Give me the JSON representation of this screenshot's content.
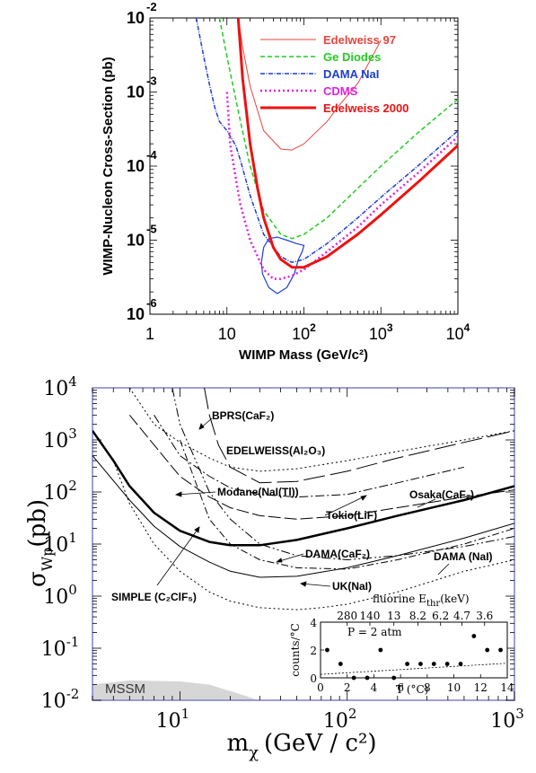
{
  "chart_data": [
    {
      "type": "line",
      "title": "",
      "xlabel": "WIMP Mass (GeV/c²)",
      "ylabel": "WIMP-Nucleon Cross-Section (pb)",
      "xscale": "log",
      "yscale": "log",
      "xlim": [
        1,
        10000
      ],
      "ylim": [
        1e-06,
        0.01
      ],
      "x_ticks": [
        {
          "v": 1,
          "base": "1",
          "exp": ""
        },
        {
          "v": 10,
          "base": "10",
          "exp": ""
        },
        {
          "v": 100,
          "base": "10",
          "exp": "2"
        },
        {
          "v": 1000,
          "base": "10",
          "exp": "3"
        },
        {
          "v": 10000,
          "base": "10",
          "exp": "4"
        }
      ],
      "y_ticks": [
        {
          "v": 0.01,
          "base": "10",
          "exp": "-2"
        },
        {
          "v": 0.001,
          "base": "10",
          "exp": "-3"
        },
        {
          "v": 0.0001,
          "base": "10",
          "exp": "-4"
        },
        {
          "v": 1e-05,
          "base": "10",
          "exp": "-5"
        },
        {
          "v": 1e-06,
          "base": "10",
          "exp": "-6"
        }
      ],
      "legend_position": "top-right",
      "series": [
        {
          "name": "Edelweiss 97",
          "color": "#e8453c",
          "dash": "",
          "width": 1,
          "x": [
            14,
            16,
            20,
            30,
            50,
            70,
            100,
            200,
            300,
            500,
            1000
          ],
          "y": [
            0.01,
            0.004,
            0.0012,
            0.0003,
            0.00017,
            0.000165,
            0.0002,
            0.0004,
            0.0007,
            0.0013,
            0.005
          ]
        },
        {
          "name": "Ge Diodes",
          "color": "#22cc22",
          "dash": "5,3",
          "width": 1.5,
          "x": [
            8,
            10,
            15,
            20,
            30,
            50,
            70,
            100,
            200,
            500,
            1000,
            3000,
            10000
          ],
          "y": [
            0.01,
            0.003,
            0.0004,
            0.0001,
            2.5e-05,
            1.2e-05,
            1.05e-05,
            1.2e-05,
            2e-05,
            5e-05,
            0.0001,
            0.00028,
            0.0008
          ]
        },
        {
          "name": "DAMA NaI",
          "color": "#1f3fd0",
          "dash": "5,1.5,1,1.5",
          "width": 1.5,
          "x": [
            4,
            5,
            6,
            7,
            8,
            10,
            13,
            15,
            20,
            30,
            50,
            70,
            100,
            200,
            500,
            1000,
            3000,
            10000
          ],
          "y": [
            0.01,
            0.003,
            0.0012,
            0.0006,
            0.0004,
            0.0003,
            0.00019,
            0.00012,
            4e-05,
            1.2e-05,
            6e-06,
            5e-06,
            5.5e-06,
            9e-06,
            2e-05,
            3.8e-05,
            0.0001,
            0.0003
          ]
        },
        {
          "name": "CDMS",
          "color": "#e020e0",
          "dash": "2,3",
          "width": 2.5,
          "x": [
            10,
            11,
            13,
            15,
            20,
            30,
            40,
            50,
            70,
            100,
            200,
            500,
            1000,
            3000,
            10000
          ],
          "y": [
            0.001,
            0.0002,
            7e-05,
            3e-05,
            1e-05,
            4e-06,
            3e-06,
            3e-06,
            3.3e-06,
            4e-06,
            7e-06,
            1.5e-05,
            3e-05,
            8e-05,
            0.00025
          ]
        },
        {
          "name": "Edelweiss 2000",
          "color": "#ee1111",
          "dash": "",
          "width": 3,
          "x": [
            14,
            16,
            20,
            25,
            30,
            40,
            50,
            70,
            100,
            200,
            500,
            1000,
            3000,
            10000
          ],
          "y": [
            0.01,
            0.0015,
            0.0002,
            5e-05,
            2e-05,
            8e-06,
            5.5e-06,
            4.3e-06,
            4.3e-06,
            6e-06,
            1.2e-05,
            2.2e-05,
            6e-05,
            0.00019
          ]
        }
      ],
      "regions": [
        {
          "name": "DAMA allowed region",
          "color": "#1f3fd0",
          "x": [
            30,
            28,
            29,
            35,
            45,
            60,
            75,
            85,
            95,
            100,
            80,
            60,
            45,
            35,
            30
          ],
          "y": [
            8e-06,
            5e-06,
            3.5e-06,
            2.3e-06,
            1.9e-06,
            2.3e-06,
            3.5e-06,
            5.5e-06,
            7e-06,
            8.5e-06,
            9e-06,
            1e-05,
            1.1e-05,
            1.05e-05,
            8e-06
          ]
        }
      ]
    },
    {
      "type": "line",
      "title": "",
      "xlabel": "m",
      "xlabel_sub": "χ",
      "xlabel_units": "(GeV / c²)",
      "ylabel": "σ",
      "ylabel_sub": "Wp",
      "ylabel_units": "(pb)",
      "xscale": "log",
      "yscale": "log",
      "xlim": [
        3,
        1000
      ],
      "ylim": [
        0.01,
        10000
      ],
      "x_ticks": [
        {
          "v": 10,
          "exp": "1"
        },
        {
          "v": 100,
          "exp": "2"
        },
        {
          "v": 1000,
          "exp": "3"
        }
      ],
      "y_ticks": [
        {
          "v": 10000,
          "exp": "4"
        },
        {
          "v": 1000,
          "exp": "3"
        },
        {
          "v": 100,
          "exp": "2"
        },
        {
          "v": 10,
          "exp": "1"
        },
        {
          "v": 1,
          "exp": "0"
        },
        {
          "v": 0.1,
          "exp": "-1"
        },
        {
          "v": 0.01,
          "exp": "-2"
        }
      ],
      "annotations": {
        "bprs": "BPRS(CaF₂)",
        "edelweiss": "EDELWEISS(Al₂O₃)",
        "modane": "Modane(NaI(Tl))",
        "tokio": "Tokio(LiF)",
        "osaka": "Osaka(CaF₂)",
        "dama_caf": "DAMA(CaF₂)",
        "dama_nai": "DAMA (NaI)",
        "uk": "UK(NaI)",
        "simple": "SIMPLE (C₂ClF₅)",
        "mssm": "MSSM"
      },
      "series": [
        {
          "name": "SIMPLE (C2ClF5)",
          "dash": "",
          "width": 2.5,
          "x": [
            3,
            4,
            5,
            7,
            10,
            15,
            20,
            30,
            50,
            100,
            200,
            500,
            1000
          ],
          "y": [
            1500,
            400,
            130,
            40,
            18,
            11,
            9.5,
            9.5,
            12,
            20,
            35,
            70,
            130
          ]
        },
        {
          "name": "EDELWEISS(Al2O3)",
          "dash": "2,3",
          "width": 1,
          "x": [
            5,
            7,
            10,
            15,
            20,
            30,
            50,
            100,
            200,
            500,
            1000
          ],
          "y": [
            10000,
            2000,
            900,
            450,
            300,
            250,
            280,
            400,
            600,
            1000,
            1500
          ]
        },
        {
          "name": "Modane(NaI(Tl))",
          "dash": "",
          "width": 1,
          "x": [
            3,
            5,
            7,
            10,
            15,
            20,
            30,
            50,
            100,
            200,
            500,
            1000
          ],
          "y": [
            500,
            70,
            22,
            9,
            4.5,
            3,
            2.3,
            2.4,
            3.5,
            6,
            13,
            25
          ]
        },
        {
          "name": "Tokio(LiF)",
          "dash": "10,3,2,3",
          "width": 1,
          "x": [
            7,
            10,
            15,
            20,
            30,
            50,
            100,
            200,
            500
          ],
          "y": [
            3000,
            500,
            200,
            120,
            90,
            80,
            90,
            150,
            300
          ]
        },
        {
          "name": "Osaka(CaF2)",
          "dash": "14,4",
          "width": 1,
          "x": [
            5,
            7,
            10,
            15,
            20,
            30,
            50,
            100,
            200,
            500,
            1000
          ],
          "y": [
            3000,
            800,
            200,
            80,
            50,
            35,
            30,
            35,
            50,
            80,
            110
          ]
        },
        {
          "name": "DAMA(CaF2)",
          "dash": "10,3,2,3,2,3",
          "width": 1,
          "x": [
            9,
            10,
            15,
            20,
            30,
            50,
            100,
            200,
            500,
            1000
          ],
          "y": [
            10000,
            2000,
            100,
            30,
            10,
            6,
            5,
            6,
            9,
            14
          ]
        },
        {
          "name": "DAMA (NaI)",
          "dash": "8,3,2,3",
          "width": 1,
          "x": [
            10,
            15,
            20,
            30,
            50,
            100,
            200,
            500,
            1000
          ],
          "y": [
            1000,
            30,
            10,
            5,
            3.5,
            3.3,
            5,
            10,
            20
          ]
        },
        {
          "name": "UK(NaI)",
          "dash": "2,3",
          "width": 1,
          "x": [
            4,
            5,
            7,
            10,
            15,
            20,
            30,
            50,
            70,
            100,
            200,
            500,
            1000
          ],
          "y": [
            400,
            60,
            10,
            3,
            1.2,
            0.8,
            0.6,
            0.55,
            0.6,
            0.7,
            1.2,
            3,
            5
          ]
        },
        {
          "name": "BPRS(CaF2)",
          "dash": "24,6",
          "width": 1,
          "x": [
            14,
            15,
            17,
            20,
            30,
            50,
            100,
            200,
            500,
            1000
          ],
          "y": [
            10000,
            3000,
            800,
            300,
            150,
            160,
            250,
            450,
            900,
            1500
          ]
        }
      ],
      "mssm": {
        "x": [
          3,
          5,
          10,
          15,
          20,
          25,
          28,
          30
        ],
        "y": [
          0.02,
          0.024,
          0.023,
          0.02,
          0.015,
          0.012,
          0.0105,
          0.01
        ]
      },
      "inset": {
        "top_axis_title": "fluorine E",
        "top_axis_title_sub": "thr",
        "top_axis_title_units": "(keV)",
        "top_ticks": [
          {
            "x": 2,
            "label": "280"
          },
          {
            "x": 3.7,
            "label": "140"
          },
          {
            "x": 5.5,
            "label": "13"
          },
          {
            "x": 7.3,
            "label": "8.2"
          },
          {
            "x": 9.0,
            "label": "6.2"
          },
          {
            "x": 10.6,
            "label": "4.7"
          },
          {
            "x": 12.3,
            "label": "3.6"
          }
        ],
        "xlabel": "T (°C)",
        "ylabel": "counts/°C",
        "xlim": [
          0,
          14
        ],
        "ylim": [
          0,
          4
        ],
        "x_ticks": [
          0,
          2,
          4,
          6,
          8,
          10,
          12,
          14
        ],
        "y_ticks": [
          0,
          2,
          4
        ],
        "condition": "P = 2 atm",
        "points": {
          "x": [
            0.5,
            1.5,
            2.5,
            3.5,
            4.5,
            5.5,
            6.5,
            7.5,
            8.5,
            9.5,
            10.5,
            11.5,
            12.5,
            13.5
          ],
          "y": [
            2,
            1,
            0,
            0,
            2,
            0,
            1,
            1,
            1,
            1,
            1,
            3,
            2,
            2
          ]
        },
        "limit_line": {
          "x": [
            0,
            14
          ],
          "y": [
            0.25,
            1.05
          ]
        }
      }
    }
  ]
}
